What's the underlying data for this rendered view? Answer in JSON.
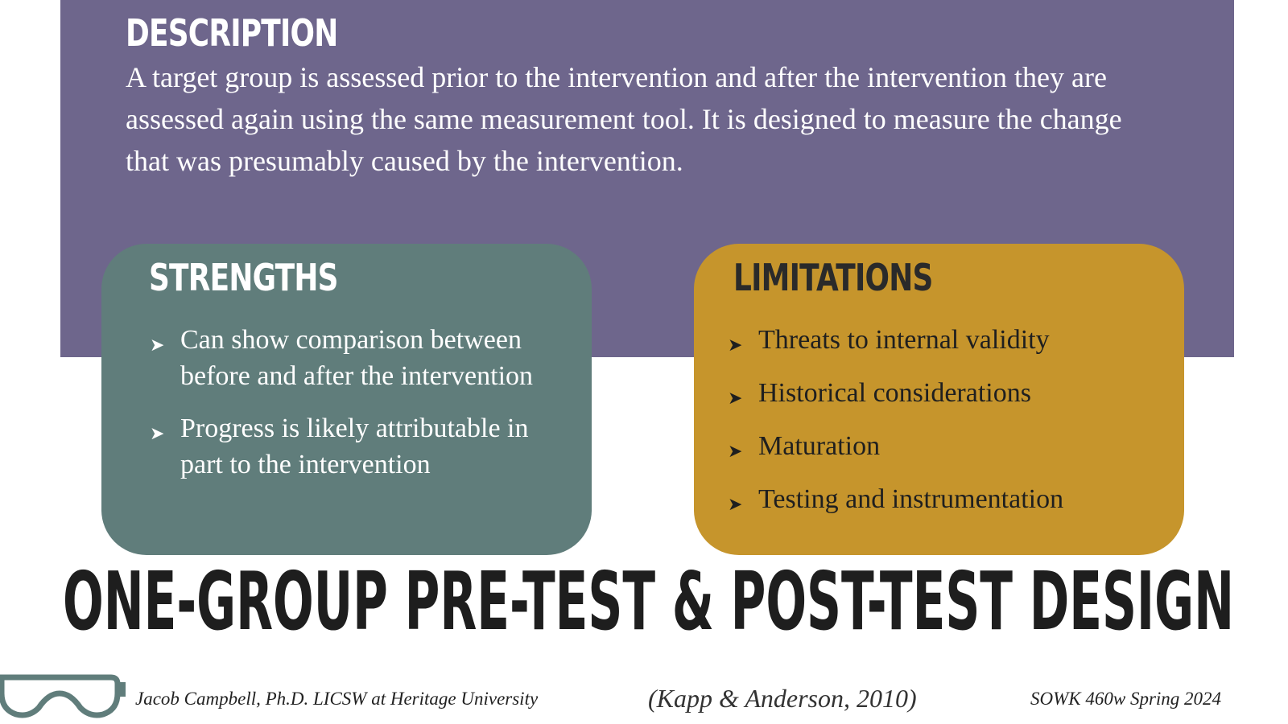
{
  "description": {
    "heading": "DESCRIPTION",
    "text": "A target group is assessed prior to the intervention and after the intervention they are assessed again using the same measurement tool. It is designed to measure the change that was presumably caused by the intervention."
  },
  "strengths": {
    "heading": "STRENGTHS",
    "items": [
      "Can show comparison between before and after the intervention",
      "Progress is likely attributable in part to the intervention"
    ]
  },
  "limitations": {
    "heading": "LIMITATIONS",
    "items": [
      "Threats to internal validity",
      "Historical considerations",
      "Maturation",
      "Testing and instrumentation"
    ]
  },
  "title": "ONE-GROUP PRE-TEST & POST-TEST DESIGN",
  "footer": {
    "author": "Jacob Campbell, Ph.D. LICSW at Heritage University",
    "citation": "(Kapp & Anderson, 2010)",
    "course": "SOWK 460w Spring 2024"
  }
}
